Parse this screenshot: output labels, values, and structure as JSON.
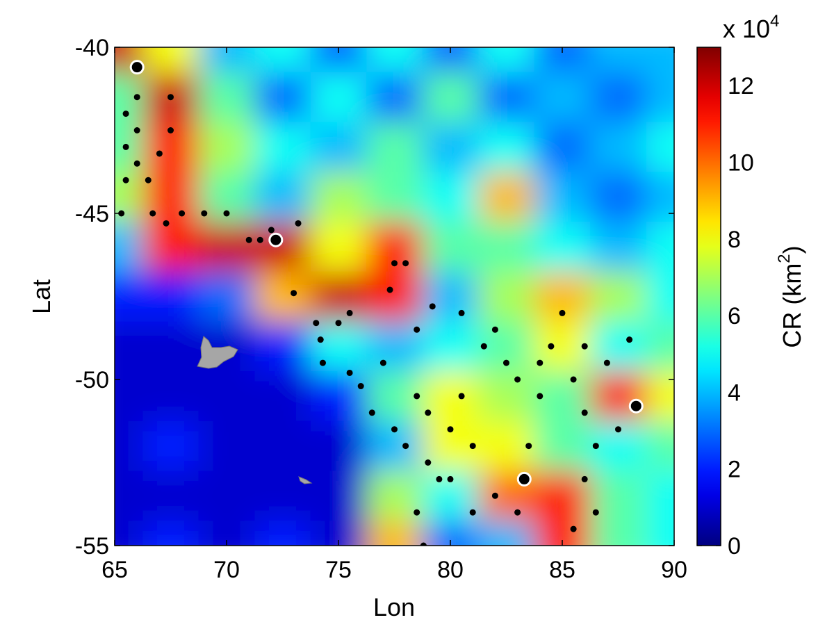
{
  "chart_data": {
    "type": "heatmap",
    "x_label": "Lon",
    "y_label": "Lat",
    "xlim": [
      65,
      90
    ],
    "ylim": [
      -55,
      -40
    ],
    "xticks": [
      65,
      70,
      75,
      80,
      85,
      90
    ],
    "yticks": [
      -55,
      -50,
      -45,
      -40
    ],
    "colormap": "jet",
    "clim": [
      0,
      13
    ],
    "cticks": [
      0,
      2,
      4,
      6,
      8,
      10,
      12
    ],
    "colorbar_multiplier": {
      "base": "x 10",
      "exponent": "4"
    },
    "colorbar_label": {
      "text": "CR (km",
      "superscript": "2",
      "suffix": ")"
    },
    "z_lon": [
      65,
      67.5,
      70,
      72.5,
      75,
      77.5,
      80,
      82.5,
      85,
      87.5,
      90
    ],
    "z_lat": [
      -40,
      -41.5,
      -43,
      -44.5,
      -46,
      -47.5,
      -49,
      -50.5,
      -52,
      -53.5,
      -55
    ],
    "z": [
      [
        12,
        8,
        4,
        5,
        3,
        5,
        3,
        5,
        3,
        4,
        4
      ],
      [
        6,
        12,
        6,
        3,
        5,
        3,
        6,
        3,
        4,
        3,
        4
      ],
      [
        6,
        11,
        7,
        5,
        4,
        6,
        4,
        5,
        3,
        4,
        5
      ],
      [
        7,
        11,
        6,
        4,
        7,
        6,
        5,
        9,
        4,
        3,
        4
      ],
      [
        4,
        11,
        12,
        12,
        8,
        11,
        6,
        6,
        5,
        4,
        5
      ],
      [
        2,
        2,
        3,
        9,
        12,
        11,
        4,
        7,
        9,
        7,
        5
      ],
      [
        1,
        1,
        1,
        2,
        5,
        4,
        5,
        6,
        8,
        5,
        6
      ],
      [
        1,
        1,
        1,
        1,
        2,
        6,
        8,
        7,
        6,
        11,
        8
      ],
      [
        1,
        2,
        1,
        1,
        1,
        4,
        8,
        8,
        6,
        5,
        6
      ],
      [
        1,
        1,
        1,
        1,
        1,
        7,
        5,
        10,
        11,
        6,
        5
      ],
      [
        1,
        2,
        1,
        2,
        1,
        9,
        3,
        4,
        11,
        6,
        5
      ]
    ],
    "series": [
      {
        "color": "#000000",
        "marker": "dot",
        "x": [
          65.5,
          65.5,
          65.5,
          65.3,
          66,
          66,
          66,
          66.5,
          66.7,
          67.3,
          67.5,
          67.5,
          67,
          68,
          69,
          70,
          71,
          72,
          73,
          74,
          75,
          74.2,
          74.3,
          75.5,
          76,
          77,
          77.5,
          78,
          77.3,
          76.5,
          77.5,
          78,
          78.5,
          79,
          79,
          79.5,
          78.5,
          78.8,
          80,
          80,
          81,
          81,
          81.5,
          82,
          82.5,
          83,
          83.5,
          84,
          84.5,
          85,
          85.5,
          86,
          86,
          86.5,
          86,
          85.5,
          86.5,
          87,
          87.5,
          88,
          82,
          83,
          84,
          80.5,
          79.2,
          80.5,
          75.5,
          73.2,
          71.5,
          78.5
        ],
        "y": [
          -42,
          -43,
          -44,
          -45,
          -41.5,
          -42.5,
          -43.5,
          -44,
          -45,
          -45.3,
          -41.5,
          -42.5,
          -43.2,
          -45,
          -45,
          -45,
          -45.8,
          -45.5,
          -47.4,
          -48.3,
          -48.3,
          -48.8,
          -49.5,
          -49.8,
          -50.2,
          -49.5,
          -46.5,
          -46.5,
          -47.3,
          -51,
          -51.5,
          -52,
          -50.5,
          -51,
          -52.5,
          -53,
          -54,
          -55,
          -51.5,
          -53,
          -52,
          -54,
          -49,
          -48.5,
          -49.5,
          -50,
          -52,
          -49.5,
          -49,
          -48,
          -50,
          -49,
          -51,
          -52,
          -53,
          -54.5,
          -54,
          -49.5,
          -51.5,
          -48.8,
          -53.5,
          -54,
          -50.5,
          -48,
          -47.8,
          -50.5,
          -48,
          -45.3,
          -45.8,
          -48.5
        ]
      },
      {
        "color": "#000000",
        "marker": "ring",
        "x": [
          66,
          72.2,
          88.3,
          83.3
        ],
        "y": [
          -40.6,
          -45.8,
          -50.8,
          -53
        ]
      }
    ]
  }
}
